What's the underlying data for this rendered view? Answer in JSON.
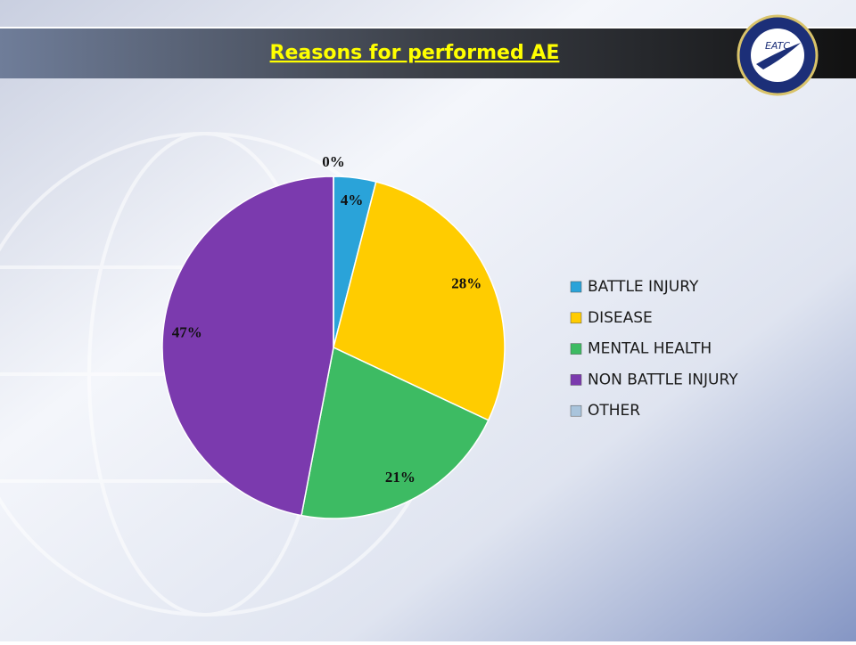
{
  "logo": {
    "text": "EATC"
  },
  "chart_data": {
    "type": "pie",
    "title": "Reasons for performed AE",
    "categories": [
      "BATTLE INJURY",
      "DISEASE",
      "MENTAL HEALTH",
      "NON BATTLE INJURY",
      "OTHER"
    ],
    "values": [
      4,
      28,
      21,
      47,
      0
    ],
    "value_labels": [
      "4%",
      "28%",
      "21%",
      "47%",
      "0%"
    ],
    "colors": [
      "#2aa3d9",
      "#ffcc00",
      "#3dbb63",
      "#7b3aae",
      "#a9c4dc"
    ],
    "legend": "right"
  }
}
